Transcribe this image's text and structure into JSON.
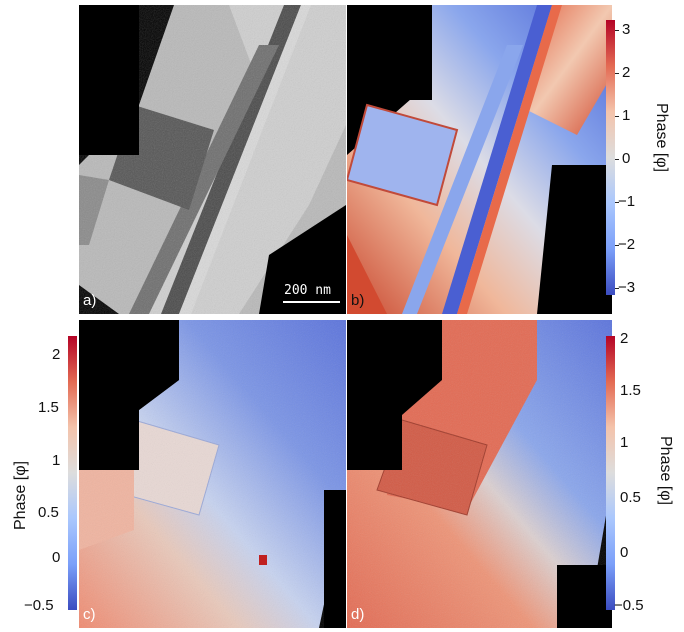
{
  "panels": {
    "a": {
      "label": "a)",
      "scalebar": "200 nm"
    },
    "b": {
      "label": "b)"
    },
    "c": {
      "label": "c)"
    },
    "d": {
      "label": "d)"
    }
  },
  "colorbars": {
    "top": {
      "title": "Phase [φ]",
      "ticks": [
        "3",
        "2",
        "1",
        "0",
        "−1",
        "−2",
        "−3"
      ]
    },
    "c": {
      "title": "Phase [φ]",
      "ticks": [
        "2",
        "1.5",
        "1",
        "0.5",
        "0",
        "−0.5"
      ]
    },
    "d": {
      "title": "Phase [φ]",
      "ticks": [
        "2",
        "1.5",
        "1",
        "0.5",
        "0",
        "−0.5"
      ]
    }
  },
  "colors": {
    "red": "#b40426",
    "blue": "#3b4cc0",
    "mid": "#dddddd",
    "background": "#000000"
  }
}
